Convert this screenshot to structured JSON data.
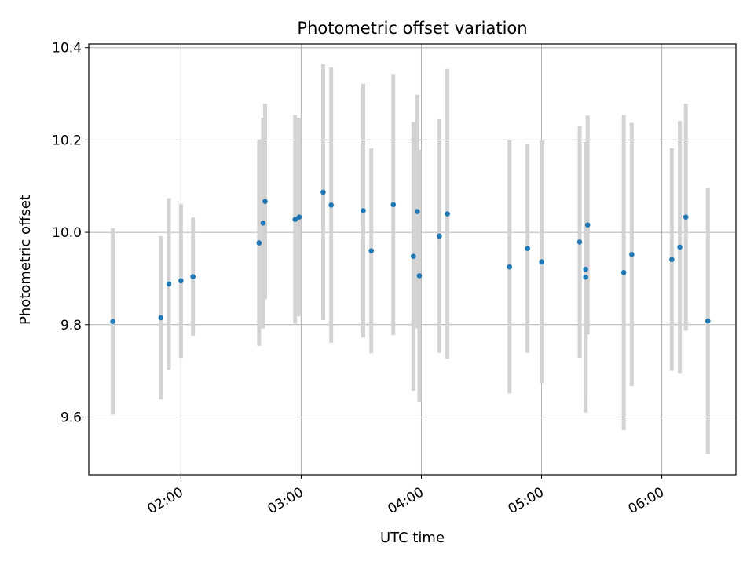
{
  "chart_data": {
    "type": "scatter",
    "title": "Photometric offset variation",
    "xlabel": "UTC time",
    "ylabel": "Photometric offset",
    "x_axis_type": "time",
    "xlim": [
      "01:14",
      "06:37"
    ],
    "ylim": [
      9.475,
      10.408
    ],
    "x_ticks": [
      "02:00",
      "03:00",
      "04:00",
      "05:00",
      "06:00"
    ],
    "y_ticks": [
      9.6,
      9.8,
      10.0,
      10.2,
      10.4
    ],
    "y_tick_labels": [
      "9.6",
      "9.8",
      "10.0",
      "10.2",
      "10.4"
    ],
    "grid": true,
    "legend": "none",
    "point_color": "#1f77b4",
    "errorbar_color": "#d3d3d3",
    "series": [
      {
        "points": [
          {
            "x": "01:26",
            "y": 9.807,
            "yerr": 0.202
          },
          {
            "x": "01:50",
            "y": 9.815,
            "yerr": 0.177
          },
          {
            "x": "01:54",
            "y": 9.888,
            "yerr": 0.186
          },
          {
            "x": "02:00",
            "y": 9.895,
            "yerr": 0.167
          },
          {
            "x": "02:06",
            "y": 9.904,
            "yerr": 0.128
          },
          {
            "x": "02:39",
            "y": 9.977,
            "yerr": 0.223
          },
          {
            "x": "02:41",
            "y": 10.02,
            "yerr": 0.228
          },
          {
            "x": "02:42",
            "y": 10.067,
            "yerr": 0.212
          },
          {
            "x": "02:57",
            "y": 10.028,
            "yerr": 0.226
          },
          {
            "x": "02:59",
            "y": 10.033,
            "yerr": 0.215
          },
          {
            "x": "03:11",
            "y": 10.087,
            "yerr": 0.277
          },
          {
            "x": "03:15",
            "y": 10.059,
            "yerr": 0.298
          },
          {
            "x": "03:31",
            "y": 10.047,
            "yerr": 0.275
          },
          {
            "x": "03:35",
            "y": 9.96,
            "yerr": 0.222
          },
          {
            "x": "03:46",
            "y": 10.06,
            "yerr": 0.283
          },
          {
            "x": "03:56",
            "y": 9.948,
            "yerr": 0.291
          },
          {
            "x": "03:58",
            "y": 10.045,
            "yerr": 0.253
          },
          {
            "x": "03:59",
            "y": 9.906,
            "yerr": 0.273
          },
          {
            "x": "04:09",
            "y": 9.992,
            "yerr": 0.253
          },
          {
            "x": "04:13",
            "y": 10.04,
            "yerr": 0.314
          },
          {
            "x": "04:44",
            "y": 9.925,
            "yerr": 0.274
          },
          {
            "x": "04:53",
            "y": 9.965,
            "yerr": 0.226
          },
          {
            "x": "05:00",
            "y": 9.936,
            "yerr": 0.263
          },
          {
            "x": "05:19",
            "y": 9.979,
            "yerr": 0.251
          },
          {
            "x": "05:22",
            "y": 9.92,
            "yerr": 0.274
          },
          {
            "x": "05:22",
            "y": 9.903,
            "yerr": 0.293
          },
          {
            "x": "05:23",
            "y": 10.016,
            "yerr": 0.237
          },
          {
            "x": "05:41",
            "y": 9.913,
            "yerr": 0.341
          },
          {
            "x": "05:45",
            "y": 9.952,
            "yerr": 0.285
          },
          {
            "x": "06:05",
            "y": 9.941,
            "yerr": 0.241
          },
          {
            "x": "06:09",
            "y": 9.968,
            "yerr": 0.273
          },
          {
            "x": "06:12",
            "y": 10.033,
            "yerr": 0.246
          },
          {
            "x": "06:23",
            "y": 9.808,
            "yerr": 0.288
          }
        ]
      }
    ]
  }
}
